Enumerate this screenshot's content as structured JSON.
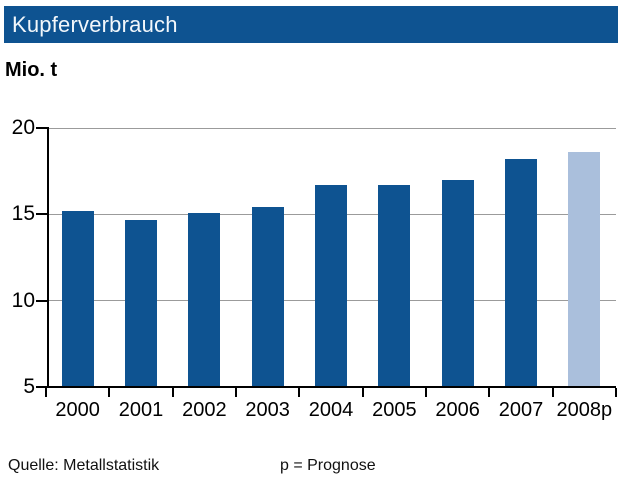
{
  "title": "Kupferverbrauch",
  "unit_label": "Mio. t",
  "footer": {
    "source": "Quelle: Metallstatistik",
    "note": "p = Prognose"
  },
  "colors": {
    "title_bar_bg": "#0E5391",
    "title_text": "#F2F7FB",
    "bar": "#0E5391",
    "forecast_bar": "#AABFDC",
    "gridline": "#9B9B9B",
    "axis": "#000000"
  },
  "chart_data": {
    "type": "bar",
    "categories": [
      "2000",
      "2001",
      "2002",
      "2003",
      "2004",
      "2005",
      "2006",
      "2007",
      "2008p"
    ],
    "values": [
      15.2,
      14.7,
      15.1,
      15.4,
      16.7,
      16.7,
      17.0,
      18.2,
      18.6
    ],
    "forecast_indices": [
      8
    ],
    "title": "Kupferverbrauch",
    "xlabel": "",
    "ylabel": "Mio. t",
    "ylim": [
      5,
      20
    ],
    "yticks": [
      20,
      15,
      10,
      5
    ],
    "grid": "horizontal-only",
    "legend": "none"
  }
}
